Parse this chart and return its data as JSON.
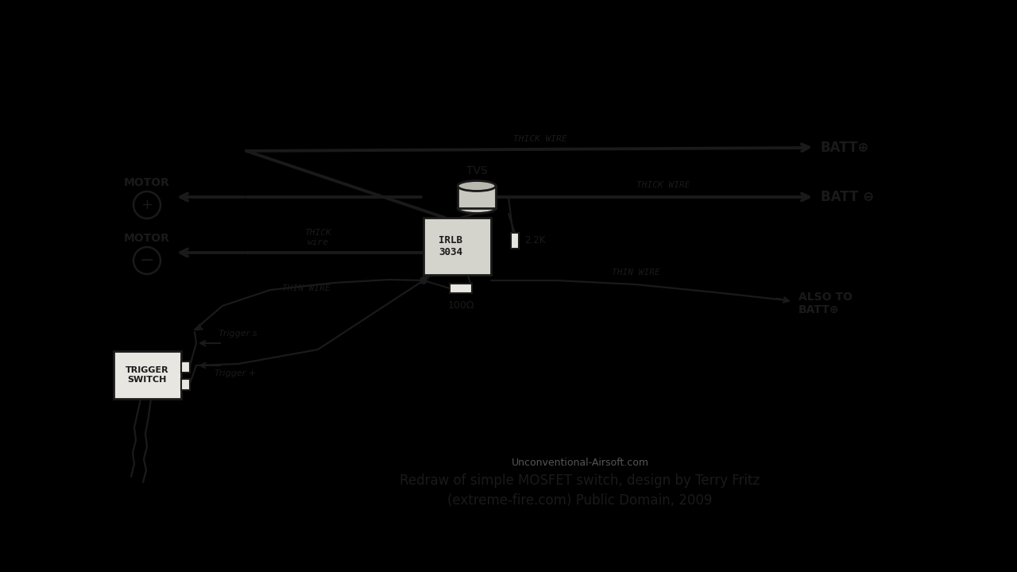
{
  "bg_color": "#e8e6e0",
  "ink": "#1a1a1a",
  "title_line1": "Redraw of simple MOSFET switch, design by Terry Fritz",
  "title_line2": "(extreme-fire.com) Public Domain, 2009",
  "watermark": "Unconventional-Airsoft.com",
  "mosfet_label": "IRLB\n3034",
  "tvs_label": "TVS",
  "resistor1_label": "2.2K",
  "resistor2_label": "100Ω",
  "batt_plus_label": "BATT⊕",
  "batt_minus_label": "BATT ⊖",
  "also_batt_label": "ALSO TO\nBATT⊕",
  "trigger_switch_label": "TRIGGER\nSWITCH",
  "trigger_s_label": "Trigger s",
  "trigger_plus_label": "Trigger +",
  "thick_wire_label1": "THICK WIRE",
  "thick_wire_label2": "THICK WIRE",
  "thick_wire_label3": "THICK\nwire",
  "thin_wire_label1": "THIN WIRE",
  "thin_wire_label2": "THIN WIRE",
  "motor_plus_text": "MOTOR",
  "motor_minus_text": "MOTOR"
}
